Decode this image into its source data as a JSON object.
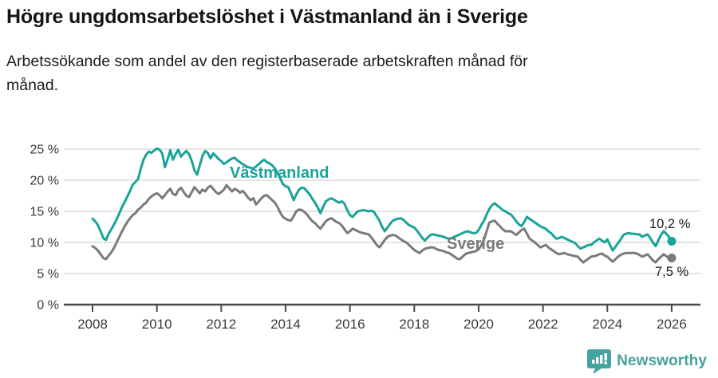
{
  "header": {
    "title": "Högre ungdomsarbetslöshet i Västmanland än i Sverige",
    "subtitle": "Arbetssökande som andel av den registerbaserade arbetskraften månad för månad."
  },
  "colors": {
    "vastmanland": "#1aa39a",
    "sverige": "#7a7a7a",
    "gridline": "#dcdcdc",
    "axis": "#4a4a4a",
    "tick_text": "#3a3a3a",
    "end_label_text": "#1a1a1a",
    "brand": "#44a39c"
  },
  "chart_data": {
    "type": "line",
    "x_unit": "month",
    "x_start": "2008-01",
    "x_end": "2026-01",
    "x_tick_years": [
      2008,
      2010,
      2012,
      2014,
      2016,
      2018,
      2020,
      2022,
      2024,
      2026
    ],
    "y_ticks": [
      0,
      5,
      10,
      15,
      20,
      25
    ],
    "y_tick_suffix": " %",
    "ylim": [
      0,
      25
    ],
    "grid": true,
    "legend_position": "inline",
    "series": [
      {
        "name": "Västmanland",
        "slug": "vastmanland",
        "color": "#1aa39a",
        "end_value": 10.2,
        "end_label": "10,2 %",
        "values": [
          13.8,
          13.4,
          12.8,
          11.8,
          10.7,
          10.4,
          11.4,
          12.1,
          12.9,
          13.7,
          14.7,
          15.7,
          16.5,
          17.4,
          18.3,
          19.3,
          19.7,
          20.2,
          21.9,
          23.3,
          24.1,
          24.6,
          24.4,
          24.8,
          25.1,
          24.9,
          24.3,
          22.1,
          23.4,
          24.8,
          23.3,
          24.2,
          24.9,
          23.8,
          24.3,
          24.7,
          24.2,
          23.1,
          21.6,
          20.9,
          22.4,
          23.9,
          24.7,
          24.4,
          23.5,
          24.3,
          23.9,
          23.4,
          23.1,
          22.6,
          22.9,
          23.2,
          23.5,
          23.6,
          23.2,
          22.9,
          22.6,
          22.3,
          22.1,
          22.0,
          21.9,
          22.2,
          22.6,
          23.0,
          23.3,
          22.9,
          22.7,
          22.4,
          21.9,
          21.2,
          20.3,
          19.4,
          19.0,
          18.9,
          17.9,
          16.8,
          17.7,
          18.5,
          18.8,
          18.7,
          18.2,
          17.7,
          17.0,
          16.4,
          15.6,
          14.7,
          15.7,
          16.6,
          16.9,
          17.1,
          16.9,
          16.6,
          16.4,
          16.6,
          16.2,
          15.2,
          14.4,
          14.1,
          14.6,
          15.0,
          15.1,
          15.2,
          15.1,
          15.0,
          15.1,
          14.9,
          14.2,
          13.5,
          12.5,
          11.8,
          12.4,
          13.0,
          13.5,
          13.7,
          13.8,
          13.9,
          13.6,
          13.2,
          12.8,
          12.6,
          12.4,
          11.9,
          11.3,
          10.7,
          10.3,
          10.8,
          11.2,
          11.3,
          11.2,
          11.1,
          11.0,
          10.9,
          10.7,
          10.6,
          10.7,
          10.9,
          11.1,
          11.3,
          11.5,
          11.7,
          11.8,
          11.6,
          11.5,
          11.5,
          12.0,
          12.8,
          13.5,
          14.5,
          15.4,
          16.0,
          16.3,
          15.9,
          15.6,
          15.2,
          15.0,
          14.7,
          14.5,
          14.0,
          13.4,
          12.9,
          12.6,
          13.3,
          14.1,
          13.8,
          13.5,
          13.2,
          12.9,
          12.6,
          12.4,
          12.2,
          11.8,
          11.5,
          11.0,
          10.6,
          10.7,
          10.9,
          10.7,
          10.5,
          10.3,
          10.1,
          9.9,
          9.4,
          9.0,
          9.2,
          9.4,
          9.6,
          9.6,
          10.0,
          10.3,
          10.6,
          10.3,
          10.0,
          10.5,
          9.6,
          8.7,
          9.3,
          9.9,
          10.5,
          11.2,
          11.4,
          11.5,
          11.4,
          11.4,
          11.3,
          11.3,
          10.9,
          11.1,
          11.3,
          10.7,
          10.0,
          9.4,
          10.3,
          11.2,
          11.8,
          11.4,
          10.9,
          10.2
        ]
      },
      {
        "name": "Sverige",
        "slug": "sverige",
        "color": "#7a7a7a",
        "end_value": 7.5,
        "end_label": "7,5 %",
        "values": [
          9.4,
          9.1,
          8.7,
          8.1,
          7.5,
          7.3,
          7.9,
          8.4,
          9.1,
          10.0,
          10.9,
          11.8,
          12.6,
          13.3,
          13.9,
          14.4,
          14.7,
          15.3,
          15.6,
          16.1,
          16.4,
          17.0,
          17.4,
          17.7,
          17.9,
          17.6,
          17.1,
          17.6,
          18.2,
          18.6,
          17.8,
          17.6,
          18.4,
          18.8,
          18.1,
          17.5,
          17.3,
          18.1,
          18.9,
          18.4,
          17.9,
          18.5,
          18.2,
          18.8,
          19.1,
          18.6,
          18.1,
          17.8,
          18.1,
          18.5,
          19.2,
          18.7,
          18.2,
          18.6,
          18.4,
          18.0,
          18.3,
          17.8,
          17.2,
          16.8,
          17.1,
          16.1,
          16.6,
          17.1,
          17.5,
          17.6,
          17.2,
          16.8,
          16.4,
          15.7,
          14.8,
          14.1,
          13.8,
          13.6,
          13.5,
          14.2,
          15.0,
          15.3,
          15.2,
          14.9,
          14.5,
          13.9,
          13.4,
          13.1,
          12.6,
          12.2,
          12.8,
          13.4,
          13.7,
          13.9,
          13.6,
          13.3,
          13.1,
          12.7,
          12.1,
          11.5,
          11.8,
          12.2,
          12.0,
          11.8,
          11.6,
          11.5,
          11.4,
          11.3,
          10.8,
          10.2,
          9.6,
          9.2,
          9.8,
          10.4,
          10.9,
          11.1,
          11.2,
          11.1,
          10.8,
          10.5,
          10.2,
          10.0,
          9.6,
          9.2,
          8.8,
          8.5,
          8.3,
          8.7,
          9.0,
          9.1,
          9.2,
          9.2,
          9.0,
          8.8,
          8.7,
          8.6,
          8.4,
          8.3,
          8.0,
          7.7,
          7.4,
          7.3,
          7.7,
          8.1,
          8.3,
          8.4,
          8.5,
          8.6,
          8.9,
          9.5,
          10.5,
          11.8,
          13.2,
          13.4,
          13.5,
          13.0,
          12.6,
          12.1,
          11.8,
          11.8,
          11.8,
          11.5,
          11.2,
          11.6,
          12.0,
          12.2,
          11.4,
          10.6,
          10.3,
          10.0,
          9.6,
          9.2,
          9.4,
          9.6,
          9.2,
          8.9,
          8.6,
          8.3,
          8.1,
          8.2,
          8.3,
          8.1,
          8.0,
          7.9,
          7.8,
          7.7,
          7.2,
          6.8,
          7.1,
          7.4,
          7.7,
          7.8,
          7.9,
          8.1,
          8.2,
          7.9,
          7.7,
          7.3,
          6.9,
          7.3,
          7.7,
          8.0,
          8.2,
          8.3,
          8.3,
          8.3,
          8.3,
          8.2,
          8.0,
          7.7,
          7.9,
          8.1,
          7.6,
          7.1,
          6.8,
          7.3,
          7.7,
          8.1,
          7.8,
          7.4,
          7.5
        ]
      }
    ]
  },
  "branding": {
    "name": "Newsworthy",
    "icon": "newsworthy-bubble-chart-icon",
    "color": "#44a39c"
  }
}
